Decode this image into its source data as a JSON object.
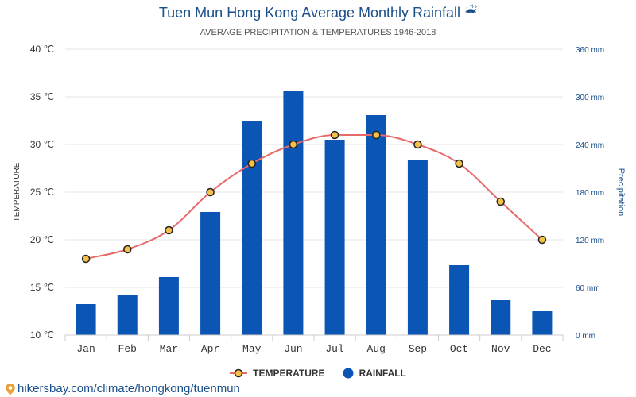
{
  "chart_data": {
    "type": "bar+line",
    "title": "Tuen Mun Hong Kong Average Monthly Rainfall ☔",
    "subtitle": "AVERAGE PRECIPITATION & TEMPERATURES 1946-2018",
    "categories": [
      "Jan",
      "Feb",
      "Mar",
      "Apr",
      "May",
      "Jun",
      "Jul",
      "Aug",
      "Sep",
      "Oct",
      "Nov",
      "Dec"
    ],
    "series": [
      {
        "name": "TEMPERATURE",
        "type": "line",
        "axis": "left",
        "color": "#e86a6a",
        "marker_fill": "#f5c04a",
        "marker_stroke": "#222222",
        "values": [
          18,
          19,
          21,
          25,
          28,
          30,
          31,
          31,
          30,
          28,
          24,
          20
        ]
      },
      {
        "name": "RAINFALL",
        "type": "bar",
        "axis": "right",
        "color": "#0b55b5",
        "values": [
          39,
          51,
          73,
          155,
          270,
          307,
          246,
          277,
          221,
          88,
          44,
          30
        ]
      }
    ],
    "y_left": {
      "label": "TEMPERATURE",
      "min": 10,
      "max": 40,
      "step": 5,
      "tick_labels": [
        "10 ℃",
        "15 ℃",
        "20 ℃",
        "25 ℃",
        "30 ℃",
        "35 ℃",
        "40 ℃"
      ]
    },
    "y_right": {
      "label": "Precipitation",
      "min": 0,
      "max": 360,
      "step": 60,
      "tick_labels": [
        "0 mm",
        "60 mm",
        "120 mm",
        "180 mm",
        "240 mm",
        "300 mm",
        "360 mm"
      ]
    },
    "grid": true,
    "legend_position": "bottom"
  },
  "source_link": "hikersbay.com/climate/hongkong/tuenmun",
  "colors": {
    "title": "#1a4f8b",
    "right_axis": "#1a4f8b",
    "grid": "#e6e6e6"
  }
}
